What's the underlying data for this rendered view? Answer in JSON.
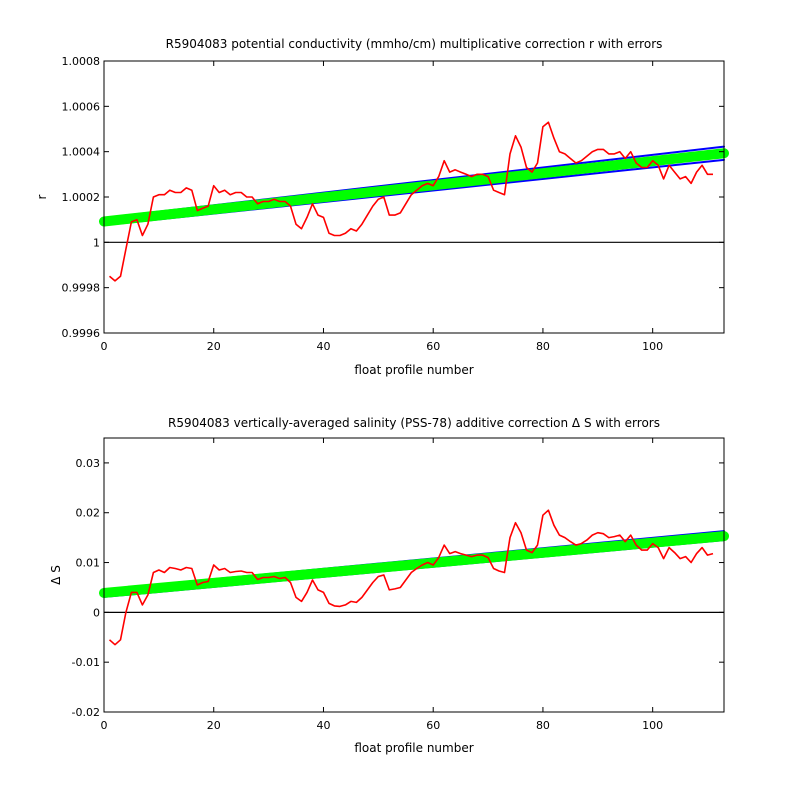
{
  "colors": {
    "observed": "#ff0000",
    "fit": "#00ff00",
    "error": "#0000ff",
    "axis": "#000000",
    "reference": "#000000"
  },
  "chart_data": [
    {
      "type": "line",
      "title": "R5904083 potential conductivity (mmho/cm) multiplicative correction r with errors",
      "xlabel": "float profile number",
      "ylabel": "r",
      "xlim": [
        0,
        113
      ],
      "ylim": [
        0.9996,
        1.0008
      ],
      "xticks": [
        0,
        20,
        40,
        60,
        80,
        100
      ],
      "xtick_labels": [
        "0",
        "20",
        "40",
        "60",
        "80",
        "100"
      ],
      "yticks": [
        0.9996,
        0.9998,
        1.0,
        1.0002,
        1.0004,
        1.0006,
        1.0008
      ],
      "ytick_labels": [
        "0.9996",
        "0.9998",
        "1",
        "1.0002",
        "1.0004",
        "1.0006",
        "1.0008"
      ],
      "reference_line": 1.0,
      "grid": false,
      "legend": "none",
      "fit": {
        "x": [
          0,
          113
        ],
        "y": [
          1.000092,
          1.000393
        ]
      },
      "error_upper": {
        "x": [
          0,
          113
        ],
        "y": [
          1.000108,
          1.000422
        ]
      },
      "error_lower": {
        "x": [
          0,
          113
        ],
        "y": [
          1.000076,
          1.000364
        ]
      },
      "series": [
        {
          "x": [
            1,
            2,
            3,
            4,
            5,
            6,
            7,
            8,
            9,
            10,
            11,
            12,
            13,
            14,
            15,
            16,
            17,
            18,
            19,
            20,
            21,
            22,
            23,
            24,
            25,
            26,
            27,
            28,
            29,
            30,
            31,
            32,
            33,
            34,
            35,
            36,
            37,
            38,
            39,
            40,
            41,
            42,
            43,
            44,
            45,
            46,
            47,
            48,
            49,
            50,
            51,
            52,
            53,
            54,
            55,
            56,
            57,
            58,
            59,
            60,
            61,
            62,
            63,
            64,
            65,
            66,
            67,
            68,
            69,
            70,
            71,
            72,
            73,
            74,
            75,
            76,
            77,
            78,
            79,
            80,
            81,
            82,
            83,
            84,
            85,
            86,
            87,
            88,
            89,
            90,
            91,
            92,
            93,
            94,
            95,
            96,
            97,
            98,
            99,
            100,
            101,
            102,
            103,
            104,
            105,
            106,
            107,
            108,
            109,
            110,
            111
          ],
          "y": [
            0.99985,
            0.99983,
            0.99985,
            0.99997,
            1.00009,
            1.0001,
            1.00003,
            1.00008,
            1.0002,
            1.00021,
            1.00021,
            1.00023,
            1.00022,
            1.00022,
            1.00024,
            1.00023,
            1.00014,
            1.00015,
            1.00016,
            1.00025,
            1.00022,
            1.00023,
            1.00021,
            1.00022,
            1.00022,
            1.0002,
            1.0002,
            1.00017,
            1.00018,
            1.00018,
            1.00019,
            1.00018,
            1.00018,
            1.00016,
            1.00008,
            1.00006,
            1.00011,
            1.00017,
            1.00012,
            1.00011,
            1.00004,
            1.00003,
            1.00003,
            1.00004,
            1.00006,
            1.00005,
            1.00008,
            1.00012,
            1.00016,
            1.00019,
            1.0002,
            1.00012,
            1.00012,
            1.00013,
            1.00017,
            1.00021,
            1.00023,
            1.00025,
            1.00026,
            1.00025,
            1.00029,
            1.00036,
            1.00031,
            1.00032,
            1.00031,
            1.0003,
            1.00029,
            1.0003,
            1.0003,
            1.00029,
            1.00023,
            1.00022,
            1.00021,
            1.00039,
            1.00047,
            1.00042,
            1.00033,
            1.00031,
            1.00035,
            1.00051,
            1.00053,
            1.00046,
            1.0004,
            1.00039,
            1.00037,
            1.00035,
            1.00036,
            1.00038,
            1.0004,
            1.00041,
            1.00041,
            1.00039,
            1.00039,
            1.0004,
            1.00037,
            1.0004,
            1.00035,
            1.00033,
            1.00033,
            1.00036,
            1.00034,
            1.00028,
            1.00034,
            1.00031,
            1.00028,
            1.00029,
            1.00026,
            1.00031,
            1.00034,
            1.0003,
            1.0003
          ]
        }
      ]
    },
    {
      "type": "line",
      "title": "R5904083 vertically-averaged salinity (PSS-78) additive correction Δ S with errors",
      "xlabel": "float profile number",
      "ylabel": "Δ S",
      "xlim": [
        0,
        113
      ],
      "ylim": [
        -0.02,
        0.035
      ],
      "xticks": [
        0,
        20,
        40,
        60,
        80,
        100
      ],
      "xtick_labels": [
        "0",
        "20",
        "40",
        "60",
        "80",
        "100"
      ],
      "yticks": [
        -0.02,
        -0.01,
        0,
        0.01,
        0.02,
        0.03
      ],
      "ytick_labels": [
        "-0.02",
        "-0.01",
        "0",
        "0.01",
        "0.02",
        "0.03"
      ],
      "reference_line": 0,
      "grid": false,
      "legend": "none",
      "fit": {
        "x": [
          0,
          113
        ],
        "y": [
          0.0039,
          0.0153
        ]
      },
      "error_upper": {
        "x": [
          0,
          113
        ],
        "y": [
          0.0046,
          0.0163
        ]
      },
      "error_lower": {
        "x": [
          0,
          113
        ],
        "y": [
          0.0031,
          0.0145
        ]
      },
      "series": [
        {
          "x": [
            1,
            2,
            3,
            4,
            5,
            6,
            7,
            8,
            9,
            10,
            11,
            12,
            13,
            14,
            15,
            16,
            17,
            18,
            19,
            20,
            21,
            22,
            23,
            24,
            25,
            26,
            27,
            28,
            29,
            30,
            31,
            32,
            33,
            34,
            35,
            36,
            37,
            38,
            39,
            40,
            41,
            42,
            43,
            44,
            45,
            46,
            47,
            48,
            49,
            50,
            51,
            52,
            53,
            54,
            55,
            56,
            57,
            58,
            59,
            60,
            61,
            62,
            63,
            64,
            65,
            66,
            67,
            68,
            69,
            70,
            71,
            72,
            73,
            74,
            75,
            76,
            77,
            78,
            79,
            80,
            81,
            82,
            83,
            84,
            85,
            86,
            87,
            88,
            89,
            90,
            91,
            92,
            93,
            94,
            95,
            96,
            97,
            98,
            99,
            100,
            101,
            102,
            103,
            104,
            105,
            106,
            107,
            108,
            109,
            110,
            111
          ],
          "y": [
            -0.0055,
            -0.0065,
            -0.0055,
            0.0,
            0.004,
            0.004,
            0.0015,
            0.0035,
            0.008,
            0.0085,
            0.008,
            0.009,
            0.0088,
            0.0085,
            0.009,
            0.0088,
            0.0055,
            0.006,
            0.0062,
            0.0095,
            0.0085,
            0.0088,
            0.008,
            0.0082,
            0.0083,
            0.008,
            0.008,
            0.0066,
            0.007,
            0.007,
            0.0072,
            0.0068,
            0.007,
            0.006,
            0.003,
            0.0022,
            0.004,
            0.0065,
            0.0045,
            0.004,
            0.0018,
            0.0013,
            0.0012,
            0.0015,
            0.0022,
            0.002,
            0.003,
            0.0045,
            0.006,
            0.0072,
            0.0075,
            0.0045,
            0.0047,
            0.005,
            0.0065,
            0.008,
            0.0088,
            0.0095,
            0.01,
            0.0095,
            0.011,
            0.0135,
            0.0118,
            0.0122,
            0.0118,
            0.0115,
            0.0112,
            0.0115,
            0.0115,
            0.011,
            0.0088,
            0.0083,
            0.008,
            0.015,
            0.018,
            0.016,
            0.0125,
            0.012,
            0.0135,
            0.0195,
            0.0205,
            0.0175,
            0.0155,
            0.015,
            0.0142,
            0.0135,
            0.0138,
            0.0145,
            0.0155,
            0.016,
            0.0158,
            0.015,
            0.0152,
            0.0155,
            0.0142,
            0.0155,
            0.0135,
            0.0125,
            0.0125,
            0.0138,
            0.013,
            0.0108,
            0.013,
            0.012,
            0.0108,
            0.0112,
            0.01,
            0.0118,
            0.013,
            0.0115,
            0.0118
          ]
        }
      ]
    }
  ]
}
